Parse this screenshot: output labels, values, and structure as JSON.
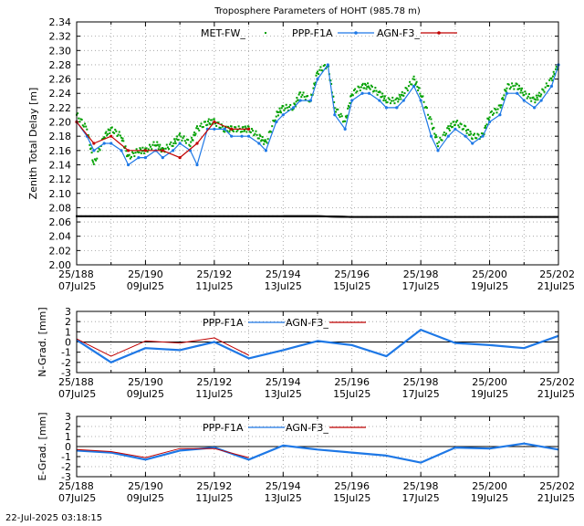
{
  "footer": "22-Jul-2025 03:18:15",
  "x_ticks": [
    {
      "doy": "25/188",
      "date": "07Jul25"
    },
    {
      "doy": "25/190",
      "date": "09Jul25"
    },
    {
      "doy": "25/192",
      "date": "11Jul25"
    },
    {
      "doy": "25/194",
      "date": "13Jul25"
    },
    {
      "doy": "25/196",
      "date": "15Jul25"
    },
    {
      "doy": "25/198",
      "date": "17Jul25"
    },
    {
      "doy": "25/200",
      "date": "19Jul25"
    },
    {
      "doy": "25/202",
      "date": "21Jul25"
    }
  ],
  "colors": {
    "met": "#00a000",
    "ppp": "#1e78e6",
    "agn": "#c00000",
    "const": "#000000",
    "grid": "#999999"
  },
  "chart_data": [
    {
      "type": "line",
      "title": "Troposphere Parameters of HOHT (985.78 m)",
      "ylabel": "Zenith Total Delay [m]",
      "xlim": [
        188,
        202
      ],
      "ylim": [
        2.0,
        2.34
      ],
      "yticks": [
        "2.00",
        "2.02",
        "2.04",
        "2.06",
        "2.08",
        "2.10",
        "2.12",
        "2.14",
        "2.16",
        "2.18",
        "2.20",
        "2.22",
        "2.24",
        "2.26",
        "2.28",
        "2.30",
        "2.32",
        "2.34"
      ],
      "grid": true,
      "legend_placement": "top",
      "series": [
        {
          "name": "MET-FW_",
          "style": "dots",
          "color": "met",
          "x": [
            188.0,
            188.3,
            188.5,
            188.8,
            189.0,
            189.3,
            189.5,
            189.8,
            190.0,
            190.3,
            190.5,
            190.8,
            191.0,
            191.3,
            191.5,
            191.8,
            192.0,
            192.3,
            192.5,
            192.8,
            193.0,
            193.3,
            193.5,
            193.8,
            194.0,
            194.3,
            194.5,
            194.8,
            195.0,
            195.3,
            195.5,
            195.8,
            196.0,
            196.3,
            196.5,
            196.8,
            197.0,
            197.3,
            197.5,
            197.8,
            198.0,
            198.3,
            198.5,
            198.8,
            199.0,
            199.3,
            199.5,
            199.8,
            200.0,
            200.3,
            200.5,
            200.8,
            201.0,
            201.3,
            201.5,
            201.8,
            202.0
          ],
          "y": [
            2.21,
            2.19,
            2.14,
            2.18,
            2.19,
            2.18,
            2.15,
            2.16,
            2.16,
            2.17,
            2.16,
            2.17,
            2.18,
            2.17,
            2.19,
            2.2,
            2.2,
            2.19,
            2.19,
            2.19,
            2.19,
            2.18,
            2.17,
            2.21,
            2.22,
            2.22,
            2.24,
            2.23,
            2.27,
            2.28,
            2.22,
            2.2,
            2.24,
            2.25,
            2.25,
            2.24,
            2.23,
            2.23,
            2.24,
            2.26,
            2.24,
            2.2,
            2.17,
            2.19,
            2.2,
            2.19,
            2.18,
            2.18,
            2.21,
            2.22,
            2.25,
            2.25,
            2.24,
            2.23,
            2.24,
            2.26,
            2.28
          ]
        },
        {
          "name": "PPP-F1A",
          "style": "line-markers",
          "color": "ppp",
          "x": [
            188.0,
            188.3,
            188.5,
            188.8,
            189.0,
            189.3,
            189.5,
            189.8,
            190.0,
            190.3,
            190.5,
            190.8,
            191.0,
            191.3,
            191.5,
            191.8,
            192.0,
            192.3,
            192.5,
            192.8,
            193.0,
            193.3,
            193.5,
            193.8,
            194.0,
            194.3,
            194.5,
            194.8,
            195.0,
            195.3,
            195.5,
            195.8,
            196.0,
            196.3,
            196.5,
            196.8,
            197.0,
            197.3,
            197.5,
            197.8,
            198.0,
            198.3,
            198.5,
            198.8,
            199.0,
            199.3,
            199.5,
            199.8,
            200.0,
            200.3,
            200.5,
            200.8,
            201.0,
            201.3,
            201.5,
            201.8,
            202.0
          ],
          "y": [
            2.2,
            2.18,
            2.16,
            2.17,
            2.17,
            2.16,
            2.14,
            2.15,
            2.15,
            2.16,
            2.15,
            2.16,
            2.17,
            2.16,
            2.14,
            2.19,
            2.19,
            2.19,
            2.18,
            2.18,
            2.18,
            2.17,
            2.16,
            2.2,
            2.21,
            2.22,
            2.23,
            2.23,
            2.26,
            2.28,
            2.21,
            2.19,
            2.23,
            2.24,
            2.24,
            2.23,
            2.22,
            2.22,
            2.23,
            2.25,
            2.23,
            2.18,
            2.16,
            2.18,
            2.19,
            2.18,
            2.17,
            2.18,
            2.2,
            2.21,
            2.24,
            2.24,
            2.23,
            2.22,
            2.23,
            2.25,
            2.28
          ]
        },
        {
          "name": "AGN-F3_",
          "style": "line-markers",
          "color": "agn",
          "x": [
            188.0,
            188.5,
            189.0,
            189.5,
            190.0,
            190.5,
            191.0,
            191.5,
            192.0,
            192.5,
            193.0
          ],
          "y": [
            2.2,
            2.17,
            2.18,
            2.16,
            2.16,
            2.16,
            2.15,
            2.17,
            2.2,
            2.19,
            2.19
          ]
        },
        {
          "name": "",
          "style": "dots",
          "color": "const",
          "x": [
            188.0,
            190.0,
            192.0,
            194.0,
            195.0,
            196.0,
            198.0,
            200.0,
            202.0
          ],
          "y": [
            2.068,
            2.068,
            2.068,
            2.068,
            2.068,
            2.067,
            2.067,
            2.067,
            2.067
          ]
        }
      ]
    },
    {
      "type": "line",
      "ylabel": "N-Grad. [mm]",
      "xlim": [
        188,
        202
      ],
      "ylim": [
        -3,
        3
      ],
      "yticks": [
        "3",
        "2",
        "1",
        "0",
        "-1",
        "-2",
        "-3"
      ],
      "zero_line": true,
      "grid": true,
      "legend_placement": "top",
      "series": [
        {
          "name": "PPP-F1A",
          "color": "ppp",
          "x": [
            188,
            189,
            190,
            191,
            192,
            193,
            194,
            195,
            196,
            197,
            198,
            199,
            200,
            201,
            202
          ],
          "y": [
            0.2,
            -2.0,
            -0.6,
            -0.8,
            0.0,
            -1.6,
            -0.8,
            0.1,
            -0.3,
            -1.4,
            1.2,
            -0.1,
            -0.3,
            -0.6,
            0.6
          ]
        },
        {
          "name": "AGN-F3_",
          "color": "agn",
          "x": [
            188,
            189,
            190,
            191,
            192,
            193
          ],
          "y": [
            0.3,
            -1.4,
            0.1,
            -0.1,
            0.4,
            -1.3
          ]
        }
      ]
    },
    {
      "type": "line",
      "ylabel": "E-Grad. [mm]",
      "xlim": [
        188,
        202
      ],
      "ylim": [
        -3,
        3
      ],
      "yticks": [
        "3",
        "2",
        "1",
        "0",
        "-1",
        "-2",
        "-3"
      ],
      "zero_line": true,
      "grid": true,
      "legend_placement": "top",
      "series": [
        {
          "name": "PPP-F1A",
          "color": "ppp",
          "x": [
            188,
            189,
            190,
            191,
            192,
            193,
            194,
            195,
            196,
            197,
            198,
            199,
            200,
            201,
            202
          ],
          "y": [
            -0.4,
            -0.6,
            -1.3,
            -0.4,
            -0.1,
            -1.3,
            0.1,
            -0.3,
            -0.6,
            -0.9,
            -1.6,
            -0.1,
            -0.2,
            0.3,
            -0.3
          ]
        },
        {
          "name": "AGN-F3_",
          "color": "agn",
          "x": [
            188,
            189,
            190,
            191,
            192,
            193
          ],
          "y": [
            -0.3,
            -0.5,
            -1.1,
            -0.2,
            -0.2,
            -1.1
          ]
        }
      ]
    }
  ]
}
